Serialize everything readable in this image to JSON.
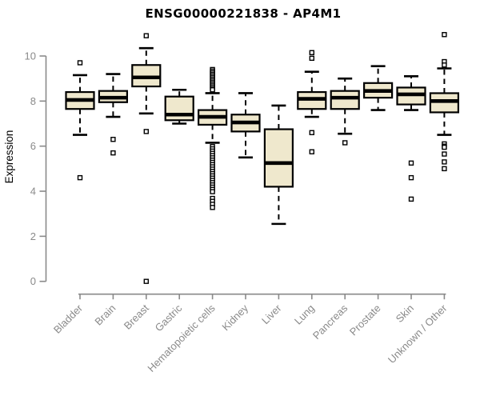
{
  "chart_data": {
    "type": "boxplot",
    "title": "ENSG00000221838 - AP4M1",
    "ylabel": "Expression",
    "xlabel": "",
    "y_ticks": [
      0,
      2,
      4,
      6,
      8,
      10
    ],
    "ylim": [
      0,
      11
    ],
    "grid": false,
    "legend": null,
    "categories": [
      "Bladder",
      "Brain",
      "Breast",
      "Gastric",
      "Hematopoietic cells",
      "Kidney",
      "Liver",
      "Lung",
      "Pancreas",
      "Prostate",
      "Skin",
      "Unknown / Other"
    ],
    "boxes": [
      {
        "category": "Bladder",
        "whisker_low": 6.5,
        "q1": 7.65,
        "median": 8.05,
        "q3": 8.4,
        "whisker_high": 9.15,
        "outliers": [
          9.7,
          4.6
        ]
      },
      {
        "category": "Brain",
        "whisker_low": 7.3,
        "q1": 7.95,
        "median": 8.15,
        "q3": 8.45,
        "whisker_high": 9.2,
        "outliers": [
          6.3,
          5.7
        ]
      },
      {
        "category": "Breast",
        "whisker_low": 7.45,
        "q1": 8.65,
        "median": 9.05,
        "q3": 9.6,
        "whisker_high": 10.35,
        "outliers": [
          10.9,
          6.65,
          0.0
        ]
      },
      {
        "category": "Gastric",
        "whisker_low": 7.0,
        "q1": 7.15,
        "median": 7.4,
        "q3": 8.2,
        "whisker_high": 8.5,
        "outliers": []
      },
      {
        "category": "Hematopoietic cells",
        "whisker_low": 6.15,
        "q1": 6.95,
        "median": 7.3,
        "q3": 7.6,
        "whisker_high": 8.35,
        "outliers": [
          9.4,
          9.33,
          9.26,
          9.19,
          9.12,
          9.05,
          8.98,
          8.91,
          8.84,
          8.77,
          8.7,
          8.63,
          8.56,
          8.5,
          5.98,
          5.88,
          5.78,
          5.68,
          5.58,
          5.48,
          5.38,
          5.28,
          5.18,
          5.08,
          4.98,
          4.88,
          4.78,
          4.68,
          4.58,
          4.48,
          4.38,
          4.28,
          4.18,
          4.08,
          3.98,
          3.68,
          3.55,
          3.42,
          3.28
        ]
      },
      {
        "category": "Kidney",
        "whisker_low": 5.5,
        "q1": 6.65,
        "median": 7.05,
        "q3": 7.4,
        "whisker_high": 8.35,
        "outliers": []
      },
      {
        "category": "Liver",
        "whisker_low": 2.55,
        "q1": 4.2,
        "median": 5.25,
        "q3": 6.75,
        "whisker_high": 7.8,
        "outliers": []
      },
      {
        "category": "Lung",
        "whisker_low": 7.3,
        "q1": 7.65,
        "median": 8.1,
        "q3": 8.4,
        "whisker_high": 9.3,
        "outliers": [
          10.15,
          9.9,
          6.6,
          5.75
        ]
      },
      {
        "category": "Pancreas",
        "whisker_low": 6.55,
        "q1": 7.65,
        "median": 8.15,
        "q3": 8.45,
        "whisker_high": 9.0,
        "outliers": [
          6.15
        ]
      },
      {
        "category": "Prostate",
        "whisker_low": 7.6,
        "q1": 8.15,
        "median": 8.45,
        "q3": 8.8,
        "whisker_high": 9.55,
        "outliers": []
      },
      {
        "category": "Skin",
        "whisker_low": 7.6,
        "q1": 7.85,
        "median": 8.3,
        "q3": 8.6,
        "whisker_high": 9.1,
        "outliers": [
          5.25,
          4.6,
          3.65
        ]
      },
      {
        "category": "Unknown / Other",
        "whisker_low": 6.5,
        "q1": 7.5,
        "median": 8.0,
        "q3": 8.35,
        "whisker_high": 9.45,
        "outliers": [
          10.95,
          9.75,
          9.6,
          6.1,
          6.0,
          5.95,
          5.65,
          5.3,
          5.0
        ]
      }
    ],
    "colors": {
      "box_fill": "#efe8cd",
      "box_stroke": "#000000",
      "median": "#000000",
      "outlier_fill": "#ffffff",
      "axis": "#8a8a8a",
      "title": "#000000",
      "background": "#ffffff"
    }
  }
}
